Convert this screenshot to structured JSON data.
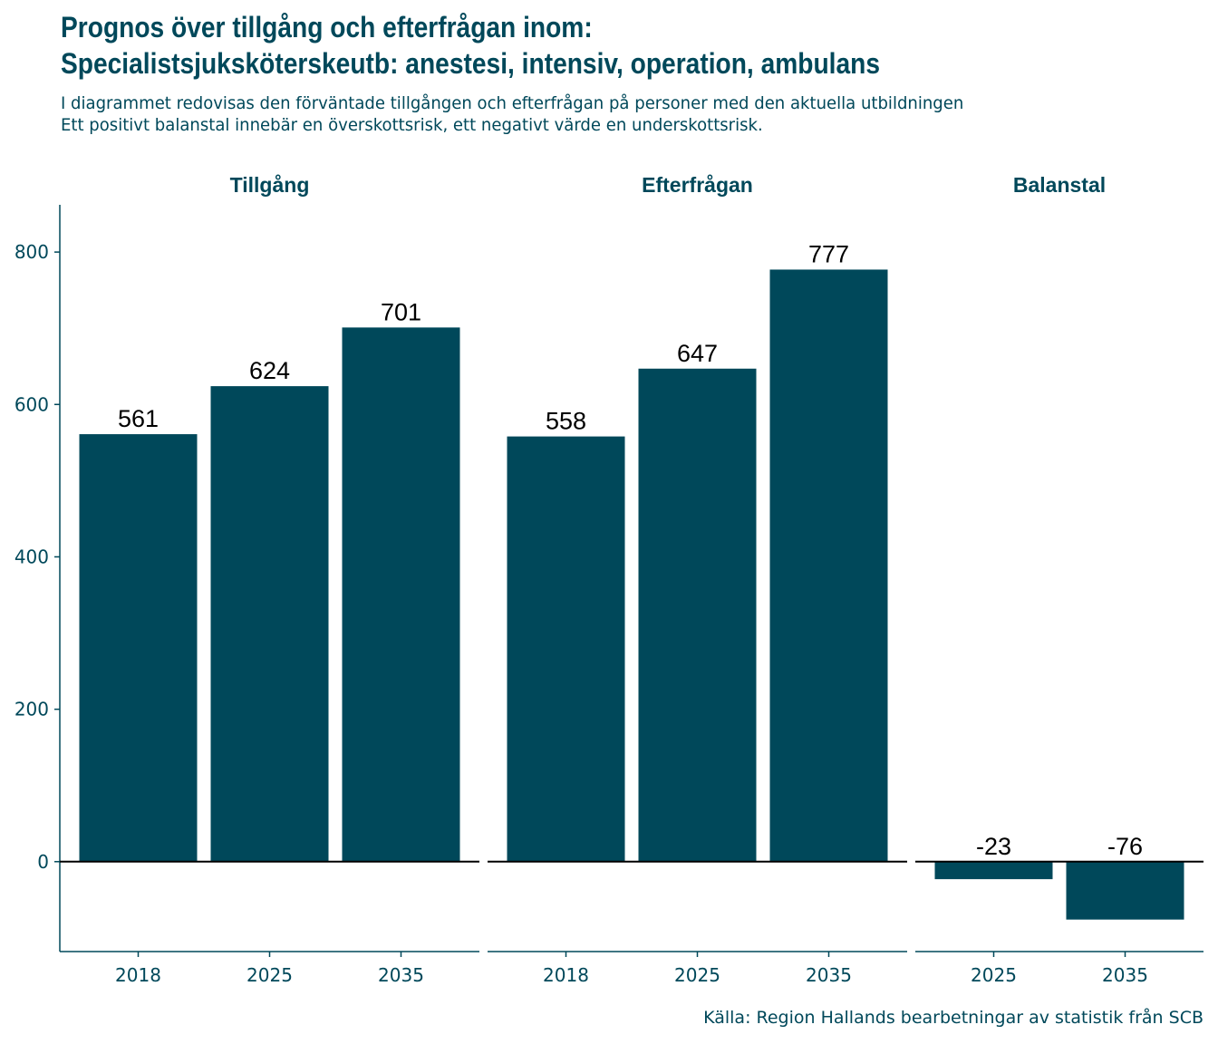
{
  "title_line1": "Prognos över tillgång och efterfrågan inom:",
  "title_line2": "Specialistsjuksköterskeutb: anestesi, intensiv, operation, ambulans",
  "subtitle_line1": "I diagrammet redovisas den förväntade tillgången och efterfrågan på personer med den aktuella utbildningen",
  "subtitle_line2": "Ett positivt balanstal innebär en överskottsrisk, ett negativt värde en underskottsrisk.",
  "caption": "Källa: Region Hallands bearbetningar av statistik från SCB",
  "colors": {
    "bar": "#00485a",
    "text": "#00485a",
    "label": "#000000"
  },
  "chart_data": {
    "type": "bar",
    "facets": [
      {
        "name": "Tillgång",
        "categories": [
          "2018",
          "2025",
          "2035"
        ],
        "values": [
          561,
          624,
          701
        ],
        "labels": [
          "561",
          "624",
          "701"
        ]
      },
      {
        "name": "Efterfrågan",
        "categories": [
          "2018",
          "2025",
          "2035"
        ],
        "values": [
          558,
          647,
          777
        ],
        "labels": [
          "558",
          "647",
          "777"
        ]
      },
      {
        "name": "Balanstal",
        "categories": [
          "2025",
          "2035"
        ],
        "values": [
          -23,
          -76
        ],
        "labels": [
          "-23",
          "-76"
        ]
      }
    ],
    "yticks": [
      0,
      200,
      400,
      600,
      800
    ],
    "ylim": [
      -118,
      862
    ],
    "xlabel": "",
    "ylabel": "",
    "grid": false,
    "zero_line": true
  }
}
